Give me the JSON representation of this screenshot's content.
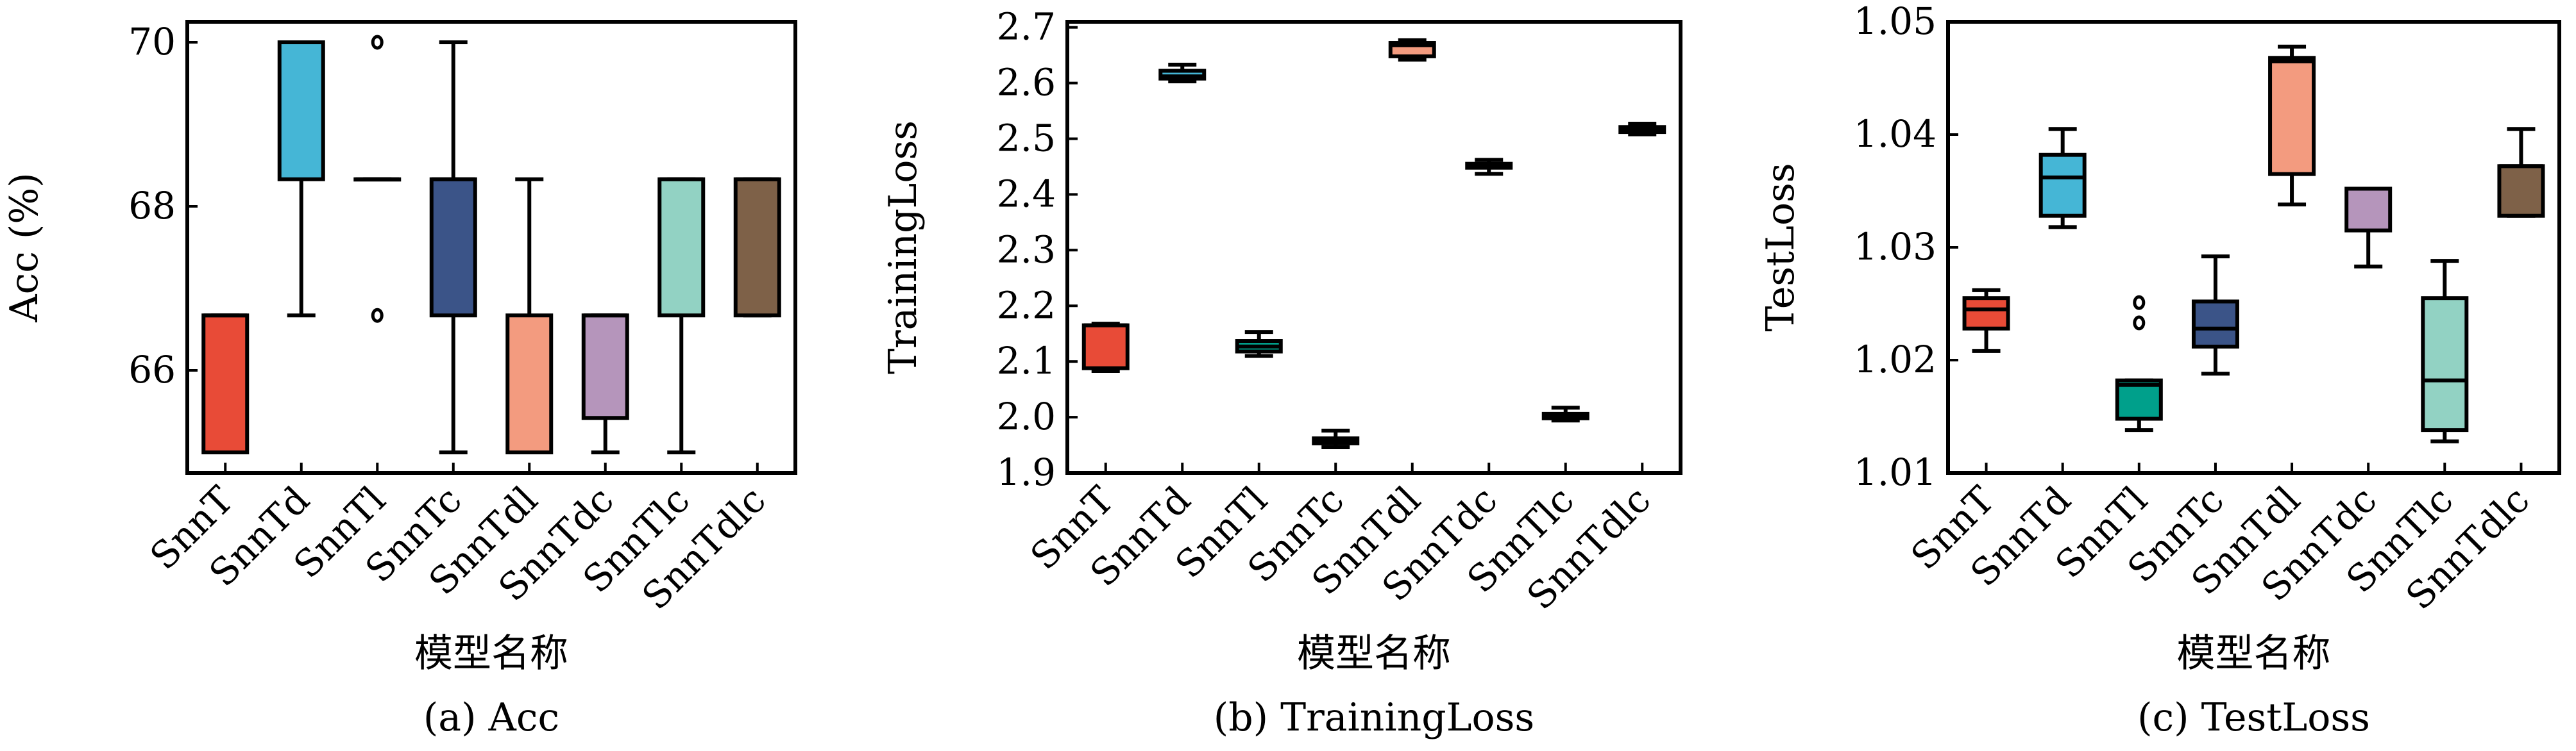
{
  "colors": [
    "#e84b37",
    "#45b6d6",
    "#00a08b",
    "#3b5488",
    "#f39b7f",
    "#b595bb",
    "#92d2c3",
    "#7e6148"
  ],
  "chart_data": [
    {
      "type": "box",
      "caption": "(a) Acc",
      "xlabel": "模型名称",
      "ylabel": "Acc (%)",
      "ylim": [
        64.75,
        70.25
      ],
      "yticks": [
        "66",
        "68",
        "70"
      ],
      "categories": [
        "SnnT",
        "SnnTd",
        "SnnTl",
        "SnnTc",
        "SnnTdl",
        "SnnTdc",
        "SnnTlc",
        "SnnTdlc"
      ],
      "boxes": [
        {
          "whislo": 65.0,
          "q1": 65.0,
          "med": 66.67,
          "q3": 66.67,
          "whishi": 66.67,
          "fliers": []
        },
        {
          "whislo": 66.67,
          "q1": 68.33,
          "med": 70.0,
          "q3": 70.0,
          "whishi": 70.0,
          "fliers": []
        },
        {
          "whislo": 68.33,
          "q1": 68.33,
          "med": 68.33,
          "q3": 68.33,
          "whishi": 68.33,
          "fliers": [
            70.0,
            66.67
          ]
        },
        {
          "whislo": 65.0,
          "q1": 66.67,
          "med": 68.33,
          "q3": 68.33,
          "whishi": 70.0,
          "fliers": []
        },
        {
          "whislo": 65.0,
          "q1": 65.0,
          "med": 65.0,
          "q3": 66.67,
          "whishi": 68.33,
          "fliers": []
        },
        {
          "whislo": 65.0,
          "q1": 65.42,
          "med": 66.67,
          "q3": 66.67,
          "whishi": 66.67,
          "fliers": []
        },
        {
          "whislo": 65.0,
          "q1": 66.67,
          "med": 68.33,
          "q3": 68.33,
          "whishi": 68.33,
          "fliers": []
        },
        {
          "whislo": 66.67,
          "q1": 66.67,
          "med": 68.33,
          "q3": 68.33,
          "whishi": 68.33,
          "fliers": []
        }
      ]
    },
    {
      "type": "box",
      "caption": "(b) TrainingLoss",
      "xlabel": "模型名称",
      "ylabel": "TrainingLoss",
      "ylim": [
        1.9,
        2.71
      ],
      "yticks": [
        "1.9",
        "2.0",
        "2.1",
        "2.2",
        "2.3",
        "2.4",
        "2.5",
        "2.6",
        "2.7"
      ],
      "categories": [
        "SnnT",
        "SnnTd",
        "SnnTl",
        "SnnTc",
        "SnnTdl",
        "SnnTdc",
        "SnnTlc",
        "SnnTdlc"
      ],
      "boxes": [
        {
          "whislo": 2.083,
          "q1": 2.088,
          "med": 2.165,
          "q3": 2.165,
          "whishi": 2.168,
          "fliers": []
        },
        {
          "whislo": 2.603,
          "q1": 2.608,
          "med": 2.612,
          "q3": 2.622,
          "whishi": 2.633,
          "fliers": []
        },
        {
          "whislo": 2.11,
          "q1": 2.118,
          "med": 2.127,
          "q3": 2.137,
          "whishi": 2.153,
          "fliers": []
        },
        {
          "whislo": 1.946,
          "q1": 1.953,
          "med": 1.958,
          "q3": 1.962,
          "whishi": 1.976,
          "fliers": []
        },
        {
          "whislo": 2.642,
          "q1": 2.648,
          "med": 2.668,
          "q3": 2.672,
          "whishi": 2.677,
          "fliers": []
        },
        {
          "whislo": 2.437,
          "q1": 2.448,
          "med": 2.452,
          "q3": 2.455,
          "whishi": 2.462,
          "fliers": []
        },
        {
          "whislo": 1.994,
          "q1": 1.998,
          "med": 2.002,
          "q3": 2.006,
          "whishi": 2.017,
          "fliers": []
        },
        {
          "whislo": 2.508,
          "q1": 2.512,
          "med": 2.516,
          "q3": 2.521,
          "whishi": 2.527,
          "fliers": []
        }
      ]
    },
    {
      "type": "box",
      "caption": "(c) TestLoss",
      "xlabel": "模型名称",
      "ylabel": "TestLoss",
      "ylim": [
        1.01,
        1.05
      ],
      "yticks": [
        "1.01",
        "1.02",
        "1.03",
        "1.04",
        "1.05"
      ],
      "categories": [
        "SnnT",
        "SnnTd",
        "SnnTl",
        "SnnTc",
        "SnnTdl",
        "SnnTdc",
        "SnnTlc",
        "SnnTdlc"
      ],
      "boxes": [
        {
          "whislo": 1.0208,
          "q1": 1.0228,
          "med": 1.0245,
          "q3": 1.0255,
          "whishi": 1.0262,
          "fliers": []
        },
        {
          "whislo": 1.0318,
          "q1": 1.0328,
          "med": 1.0362,
          "q3": 1.0382,
          "whishi": 1.0405,
          "fliers": []
        },
        {
          "whislo": 1.0138,
          "q1": 1.0148,
          "med": 1.0178,
          "q3": 1.0182,
          "whishi": 1.0182,
          "fliers": [
            1.0233,
            1.0251
          ]
        },
        {
          "whislo": 1.0188,
          "q1": 1.0212,
          "med": 1.0228,
          "q3": 1.0252,
          "whishi": 1.0292,
          "fliers": []
        },
        {
          "whislo": 1.0338,
          "q1": 1.0365,
          "med": 1.0465,
          "q3": 1.0468,
          "whishi": 1.0478,
          "fliers": []
        },
        {
          "whislo": 1.0283,
          "q1": 1.0315,
          "med": 1.0352,
          "q3": 1.0352,
          "whishi": 1.0352,
          "fliers": []
        },
        {
          "whislo": 1.0128,
          "q1": 1.0138,
          "med": 1.0182,
          "q3": 1.0255,
          "whishi": 1.0288,
          "fliers": []
        },
        {
          "whislo": 1.0328,
          "q1": 1.0328,
          "med": 1.0372,
          "q3": 1.0372,
          "whishi": 1.0405,
          "fliers": []
        }
      ]
    }
  ]
}
